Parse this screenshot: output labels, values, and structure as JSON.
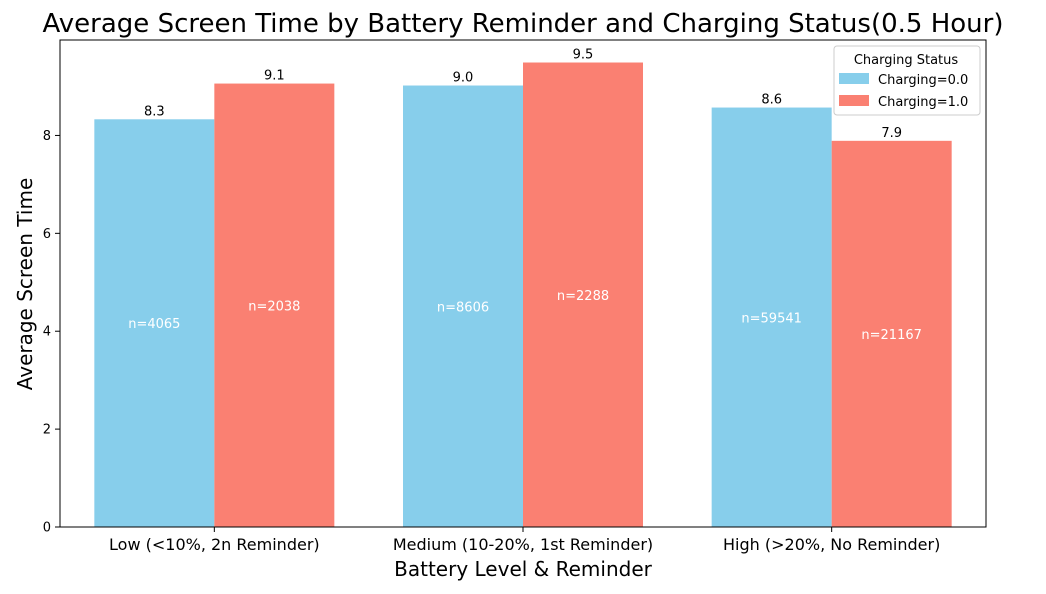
{
  "chart_data": {
    "type": "bar",
    "title": "Average Screen Time by Battery Reminder and Charging Status(0.5 Hour)",
    "xlabel": "Battery Level & Reminder",
    "ylabel": "Average Screen Time",
    "categories": [
      "Low (<10%, 2n Reminder)",
      "Medium (10-20%, 1st Reminder)",
      "High (>20%, No Reminder)"
    ],
    "series": [
      {
        "name": "Charging=0.0",
        "color": "#87ceeb",
        "values": [
          8.33,
          9.02,
          8.57
        ],
        "value_labels": [
          "8.3",
          "9.0",
          "8.6"
        ],
        "count_labels": [
          "n=4065",
          "n=8606",
          "n=59541"
        ]
      },
      {
        "name": "Charging=1.0",
        "color": "#fa8072",
        "values": [
          9.06,
          9.49,
          7.89
        ],
        "value_labels": [
          "9.1",
          "9.5",
          "7.9"
        ],
        "count_labels": [
          "n=2038",
          "n=2288",
          "n=21167"
        ]
      }
    ],
    "ylim": [
      0,
      9.95
    ],
    "yticks": [
      "0",
      "2",
      "4",
      "6",
      "8"
    ],
    "ytick_values": [
      0,
      2,
      4,
      6,
      8
    ],
    "legend": {
      "title": "Charging Status",
      "placement": "top-right"
    },
    "grid": false
  }
}
